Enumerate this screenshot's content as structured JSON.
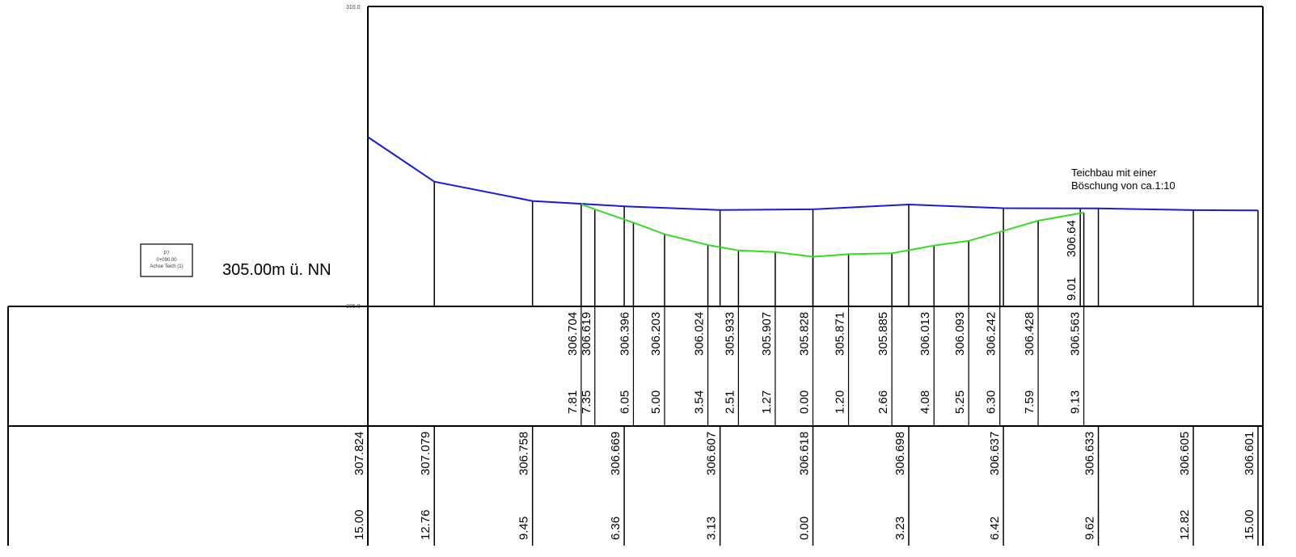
{
  "profile": {
    "axis_top_label": "310.0",
    "axis_bottom_label": "305.0",
    "reference_level": "305.00m ü. NN",
    "profile_box": {
      "line1": "P7",
      "line2": "0+090.00",
      "line3": "Achse Teich (1)"
    },
    "annotation": {
      "line1": "Teichbau mit einer",
      "line2": "Böschung von ca.1:10"
    }
  },
  "chart_data": {
    "type": "line",
    "ylim": [
      305.0,
      310.0
    ],
    "series": [
      {
        "name": "",
        "color": "#1a1adc",
        "points": [
          {
            "x": 15.0,
            "y": 307.824
          },
          {
            "x": 12.76,
            "y": 307.079
          },
          {
            "x": 9.45,
            "y": 306.758
          },
          {
            "x": 6.36,
            "y": 306.669
          },
          {
            "x": 3.13,
            "y": 306.607
          },
          {
            "x": 0.0,
            "y": 306.618
          },
          {
            "x": -3.23,
            "y": 306.698
          },
          {
            "x": -6.42,
            "y": 306.637
          },
          {
            "x": -9.62,
            "y": 306.633
          },
          {
            "x": -12.82,
            "y": 306.605
          },
          {
            "x": -15.0,
            "y": 306.601
          }
        ]
      },
      {
        "name": "",
        "color": "#33dd22",
        "points": [
          {
            "x": 7.81,
            "y": 306.704
          },
          {
            "x": 7.35,
            "y": 306.619
          },
          {
            "x": 6.05,
            "y": 306.396
          },
          {
            "x": 5.0,
            "y": 306.203
          },
          {
            "x": 3.54,
            "y": 306.024
          },
          {
            "x": 2.51,
            "y": 305.933
          },
          {
            "x": 1.27,
            "y": 305.907
          },
          {
            "x": 0.0,
            "y": 305.828
          },
          {
            "x": -1.2,
            "y": 305.871
          },
          {
            "x": -2.66,
            "y": 305.885
          },
          {
            "x": -4.08,
            "y": 306.013
          },
          {
            "x": -5.25,
            "y": 306.093
          },
          {
            "x": -6.3,
            "y": 306.242
          },
          {
            "x": -7.59,
            "y": 306.428
          },
          {
            "x": -9.13,
            "y": 306.563
          }
        ]
      }
    ],
    "extra_labels": [
      {
        "x": -9.01,
        "y": 306.64,
        "elev_text": "306.64",
        "dist_text": "9.01"
      }
    ],
    "design_table": {
      "elevations": [
        "306.704",
        "306.619",
        "306.396",
        "306.203",
        "306.024",
        "305.933",
        "305.907",
        "305.828",
        "305.871",
        "305.885",
        "306.013",
        "306.093",
        "306.242",
        "306.428",
        "306.563"
      ],
      "distances": [
        "7.81",
        "7.35",
        "6.05",
        "5.00",
        "3.54",
        "2.51",
        "1.27",
        "0.00",
        "1.20",
        "2.66",
        "4.08",
        "5.25",
        "6.30",
        "7.59",
        "9.13"
      ]
    },
    "terrain_table": {
      "elevations": [
        "307.824",
        "307.079",
        "306.758",
        "306.669",
        "306.607",
        "306.618",
        "306.698",
        "306.637",
        "306.633",
        "306.605",
        "306.601"
      ],
      "distances": [
        "15.00",
        "12.76",
        "9.45",
        "6.36",
        "3.13",
        "0.00",
        "3.23",
        "6.42",
        "9.62",
        "12.82",
        "15.00"
      ]
    }
  }
}
